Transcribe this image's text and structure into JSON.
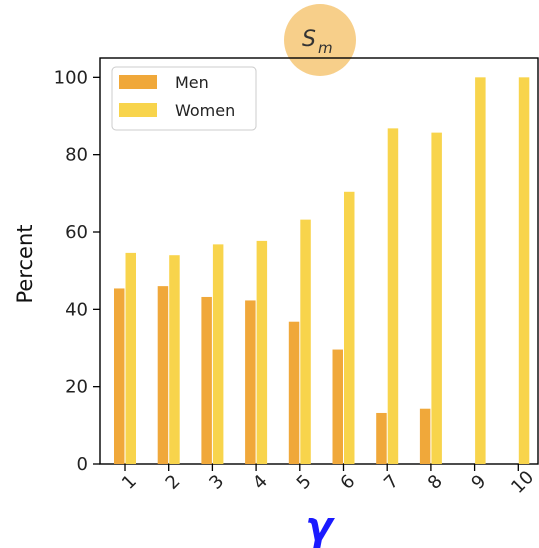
{
  "chart_data": {
    "type": "bar",
    "title": {
      "main": "S",
      "sub": "m"
    },
    "xlabel": "γ",
    "ylabel": "Percent",
    "categories": [
      "1",
      "2",
      "3",
      "4",
      "5",
      "6",
      "7",
      "8",
      "9",
      "10"
    ],
    "ylim": [
      0,
      105
    ],
    "yticks": [
      "0",
      "20",
      "40",
      "60",
      "80",
      "100"
    ],
    "grid": false,
    "legend_position": "top-left",
    "series": [
      {
        "name": "Men",
        "color": "#f0a83a",
        "values": [
          45.4,
          46.0,
          43.2,
          42.3,
          36.8,
          29.6,
          13.2,
          14.3,
          0,
          0
        ]
      },
      {
        "name": "Women",
        "color": "#f8d44c",
        "values": [
          54.6,
          54.0,
          56.8,
          57.7,
          63.2,
          70.4,
          86.8,
          85.7,
          100,
          100
        ]
      }
    ],
    "title_badge_color": "#f7cf8a"
  }
}
